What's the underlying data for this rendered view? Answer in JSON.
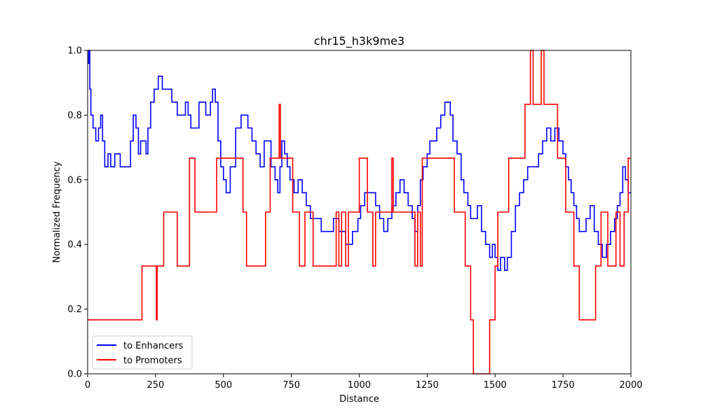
{
  "chart_data": {
    "type": "line",
    "title": "chr15_h3k9me3",
    "xlabel": "Distance",
    "ylabel": "Normalized Frequency",
    "xlim": [
      0,
      2000
    ],
    "ylim": [
      0,
      1
    ],
    "x_ticks": [
      0,
      250,
      500,
      750,
      1000,
      1250,
      1500,
      1750,
      2000
    ],
    "y_ticks": [
      0.0,
      0.2,
      0.4,
      0.6,
      0.8,
      1.0
    ],
    "legend_position": "lower-left",
    "grid": false,
    "series": [
      {
        "name": "to Enhancers",
        "color": "#0000ff",
        "x": [
          0,
          4,
          8,
          12,
          20,
          30,
          40,
          48,
          55,
          63,
          75,
          85,
          100,
          120,
          145,
          158,
          168,
          178,
          187,
          195,
          205,
          215,
          222,
          232,
          245,
          260,
          275,
          290,
          310,
          330,
          350,
          360,
          370,
          380,
          395,
          410,
          425,
          435,
          445,
          452,
          460,
          470,
          480,
          490,
          500,
          510,
          525,
          545,
          565,
          575,
          590,
          605,
          620,
          635,
          650,
          665,
          675,
          690,
          700,
          708,
          715,
          725,
          735,
          745,
          760,
          775,
          790,
          805,
          820,
          840,
          860,
          880,
          905,
          925,
          950,
          975,
          995,
          1005,
          1020,
          1040,
          1060,
          1075,
          1090,
          1105,
          1120,
          1135,
          1150,
          1165,
          1180,
          1195,
          1205,
          1215,
          1225,
          1235,
          1250,
          1260,
          1270,
          1285,
          1300,
          1315,
          1325,
          1335,
          1345,
          1360,
          1375,
          1385,
          1400,
          1410,
          1420,
          1435,
          1450,
          1465,
          1480,
          1490,
          1500,
          1510,
          1520,
          1535,
          1545,
          1560,
          1575,
          1590,
          1605,
          1620,
          1640,
          1660,
          1675,
          1690,
          1705,
          1720,
          1735,
          1750,
          1760,
          1770,
          1780,
          1790,
          1800,
          1810,
          1820,
          1835,
          1850,
          1865,
          1880,
          1895,
          1910,
          1925,
          1940,
          1950,
          1960,
          1970,
          1980,
          1990,
          2000
        ],
        "y": [
          0.96,
          1.0,
          0.88,
          0.8,
          0.76,
          0.72,
          0.76,
          0.8,
          0.72,
          0.64,
          0.68,
          0.64,
          0.68,
          0.64,
          0.64,
          0.72,
          0.8,
          0.76,
          0.68,
          0.72,
          0.72,
          0.68,
          0.76,
          0.84,
          0.88,
          0.92,
          0.88,
          0.88,
          0.84,
          0.8,
          0.8,
          0.84,
          0.8,
          0.76,
          0.76,
          0.84,
          0.84,
          0.8,
          0.8,
          0.84,
          0.88,
          0.84,
          0.72,
          0.64,
          0.6,
          0.56,
          0.64,
          0.76,
          0.8,
          0.8,
          0.76,
          0.72,
          0.68,
          0.64,
          0.72,
          0.72,
          0.64,
          0.6,
          0.56,
          0.64,
          0.72,
          0.68,
          0.64,
          0.6,
          0.56,
          0.6,
          0.56,
          0.52,
          0.48,
          0.48,
          0.44,
          0.44,
          0.48,
          0.44,
          0.4,
          0.44,
          0.48,
          0.52,
          0.56,
          0.56,
          0.52,
          0.48,
          0.44,
          0.48,
          0.52,
          0.56,
          0.6,
          0.56,
          0.52,
          0.48,
          0.44,
          0.52,
          0.6,
          0.64,
          0.68,
          0.72,
          0.72,
          0.76,
          0.8,
          0.84,
          0.84,
          0.8,
          0.72,
          0.68,
          0.6,
          0.56,
          0.52,
          0.48,
          0.48,
          0.52,
          0.44,
          0.4,
          0.36,
          0.4,
          0.36,
          0.32,
          0.36,
          0.32,
          0.36,
          0.44,
          0.52,
          0.56,
          0.6,
          0.64,
          0.64,
          0.68,
          0.72,
          0.76,
          0.72,
          0.76,
          0.72,
          0.68,
          0.64,
          0.6,
          0.56,
          0.52,
          0.48,
          0.44,
          0.44,
          0.48,
          0.52,
          0.44,
          0.4,
          0.36,
          0.4,
          0.44,
          0.48,
          0.52,
          0.56,
          0.64,
          0.6,
          0.56,
          0.56
        ]
      },
      {
        "name": "to Promoters",
        "color": "#ff0000",
        "x": [
          0,
          200,
          250,
          253,
          256,
          280,
          330,
          375,
          395,
          475,
          572,
          585,
          590,
          655,
          672,
          705,
          710,
          715,
          755,
          765,
          780,
          800,
          830,
          860,
          890,
          915,
          925,
          935,
          950,
          960,
          975,
          1000,
          1030,
          1050,
          1060,
          1075,
          1100,
          1120,
          1125,
          1128,
          1135,
          1205,
          1215,
          1225,
          1232,
          1240,
          1250,
          1350,
          1390,
          1410,
          1420,
          1430,
          1440,
          1480,
          1490,
          1500,
          1510,
          1520,
          1550,
          1580,
          1610,
          1630,
          1640,
          1655,
          1670,
          1680,
          1690,
          1700,
          1730,
          1760,
          1790,
          1810,
          1830,
          1850,
          1870,
          1890,
          1915,
          1945,
          1960,
          1975,
          1990,
          2000
        ],
        "y": [
          0.1667,
          0.3333,
          0.3333,
          0.1667,
          0.3333,
          0.5,
          0.3333,
          0.6667,
          0.5,
          0.6667,
          0.5,
          0.3333,
          0.3333,
          0.5,
          0.6667,
          0.8333,
          0.6667,
          0.6667,
          0.5,
          0.5,
          0.3333,
          0.5,
          0.3333,
          0.3333,
          0.3333,
          0.5,
          0.3333,
          0.5,
          0.3333,
          0.5,
          0.5,
          0.6667,
          0.5,
          0.3333,
          0.5,
          0.5,
          0.5,
          0.6667,
          0.5,
          0.5,
          0.5,
          0.3333,
          0.5,
          0.3333,
          0.6667,
          0.6667,
          0.6667,
          0.5,
          0.3333,
          0.1667,
          0.0,
          0.0,
          0.0,
          0.1667,
          0.1667,
          0.3333,
          0.5,
          0.5,
          0.6667,
          0.6667,
          0.8333,
          1.0,
          0.8333,
          0.8333,
          1.0,
          0.8333,
          0.8333,
          0.8333,
          0.6667,
          0.5,
          0.3333,
          0.1667,
          0.1667,
          0.1667,
          0.3333,
          0.5,
          0.3333,
          0.5,
          0.3333,
          0.5,
          0.6667,
          0.6667
        ]
      }
    ]
  }
}
